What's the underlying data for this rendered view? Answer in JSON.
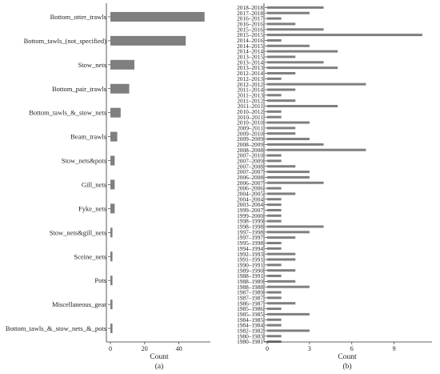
{
  "chart_data": [
    {
      "type": "bar",
      "orientation": "horizontal",
      "panel_label": "(a)",
      "xlabel": "Count",
      "ylabel": "",
      "xlim": [
        0,
        57
      ],
      "xticks": [
        0,
        20,
        40
      ],
      "grid": false,
      "bar_color": "#7f7f7f",
      "categories": [
        "Bottom_otter_trawls",
        "Bottom_tawls_(not_specified)",
        "Stow_nets",
        "Bottom_pair_trawls",
        "Bottom_tawls_&_stow_nets",
        "Beam_trawls",
        "Stow_nets&pots",
        "Gill_nets",
        "Fyke_nets",
        "Stow_nets&gill_nets",
        "Sceine_nets",
        "Pots",
        "Miscellaneous_gear",
        "Bottom_tawls_&_stow_nets_&_pots"
      ],
      "values": [
        55,
        44,
        14,
        11,
        6,
        4,
        2.5,
        2.5,
        2.5,
        1.2,
        1.2,
        1.2,
        1.2,
        1.2
      ]
    },
    {
      "type": "bar",
      "orientation": "horizontal",
      "panel_label": "(b)",
      "xlabel": "Count",
      "ylabel": "",
      "xlim": [
        0,
        11.4
      ],
      "xticks": [
        0,
        3,
        6,
        9
      ],
      "grid": false,
      "bar_color": "#7f7f7f",
      "categories": [
        "2018–2018",
        "2017–2018",
        "2016–2017",
        "2016–2016",
        "2015–2016",
        "2015–2015",
        "2014–2016",
        "2014–2015",
        "2014–2014",
        "2013–2015",
        "2013–2014",
        "2013–2013",
        "2012–2014",
        "2012–2013",
        "2012–2012",
        "2011–2014",
        "2011–2013",
        "2011–2012",
        "2011–2011",
        "2010–2012",
        "2010–2011",
        "2010–2010",
        "2009–2011",
        "2009–2010",
        "2009–2009",
        "2008–2009",
        "2008–2008",
        "2007–2010",
        "2007–2009",
        "2007–2008",
        "2007–2007",
        "2006–2008",
        "2006–2007",
        "2006–2006",
        "2004–2005",
        "2004–2004",
        "2003–2004",
        "1999–2007",
        "1999–2000",
        "1998–1999",
        "1998–1998",
        "1997–1998",
        "1997–1997",
        "1995–1998",
        "1994–1994",
        "1992–1993",
        "1991–1991",
        "1990–1991",
        "1989–1990",
        "1988–1991",
        "1988–1989",
        "1988–1988",
        "1987–1989",
        "1987–1987",
        "1986–1987",
        "1985–1986",
        "1985–1985",
        "1984–1985",
        "1984–1984",
        "1982–1982",
        "1980–1983",
        "1980–1981"
      ],
      "values": [
        4,
        3,
        1,
        2,
        4,
        11,
        1,
        3,
        5,
        2,
        4,
        5,
        2,
        1,
        7,
        2,
        1,
        2,
        5,
        1,
        1,
        3,
        2,
        2,
        3,
        4,
        7,
        1,
        1,
        2,
        3,
        3,
        4,
        1,
        2,
        1,
        1,
        1,
        1,
        1,
        4,
        3,
        2,
        1,
        1,
        2,
        2,
        1,
        2,
        1,
        2,
        3,
        1,
        1,
        2,
        1,
        3,
        1,
        1,
        3,
        1,
        1
      ]
    }
  ]
}
